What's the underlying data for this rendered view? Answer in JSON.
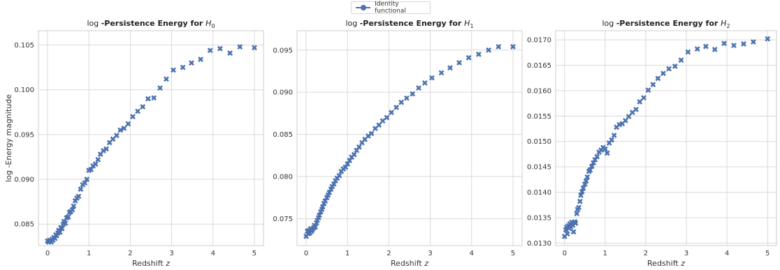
{
  "legend": {
    "label": "Identity functional",
    "color": "#4c72b0"
  },
  "shared": {
    "ylabel": "log -Energy magnitude",
    "xlabel_prefix": "Redshift ",
    "xlabel_var": "z"
  },
  "chart_data": [
    {
      "type": "scatter",
      "title_prefix": "log ",
      "title_bold": "-Persistence Energy for ",
      "title_sym": "H",
      "title_sub": "0",
      "xlim": [
        -0.22,
        5.22
      ],
      "ylim": [
        0.0826,
        0.1066
      ],
      "xticks": [
        0,
        1,
        2,
        3,
        4,
        5
      ],
      "yticks": [
        0.085,
        0.09,
        0.095,
        0.1,
        0.105
      ],
      "ytick_labels": [
        "0.085",
        "0.090",
        "0.095",
        "0.100",
        "0.105"
      ],
      "x": [
        0,
        0.03,
        0.05,
        0.07,
        0.09,
        0.11,
        0.13,
        0.15,
        0.18,
        0.2,
        0.22,
        0.25,
        0.27,
        0.3,
        0.32,
        0.35,
        0.38,
        0.4,
        0.43,
        0.46,
        0.5,
        0.53,
        0.56,
        0.6,
        0.63,
        0.67,
        0.71,
        0.75,
        0.8,
        0.85,
        0.9,
        0.95,
        1.0,
        1.05,
        1.1,
        1.16,
        1.22,
        1.28,
        1.35,
        1.42,
        1.5,
        1.58,
        1.67,
        1.76,
        1.85,
        1.95,
        2.06,
        2.18,
        2.3,
        2.43,
        2.57,
        2.72,
        2.87,
        3.04,
        3.27,
        3.48,
        3.7,
        3.93,
        4.17,
        4.41,
        4.65,
        5.0
      ],
      "y": [
        0.0831,
        0.083,
        0.0832,
        0.0831,
        0.083,
        0.0833,
        0.0832,
        0.0835,
        0.0834,
        0.0838,
        0.0837,
        0.084,
        0.0843,
        0.0841,
        0.0846,
        0.0845,
        0.085,
        0.0853,
        0.0851,
        0.0857,
        0.0858,
        0.0863,
        0.0864,
        0.0866,
        0.087,
        0.0876,
        0.0879,
        0.0881,
        0.0889,
        0.0894,
        0.0896,
        0.09,
        0.091,
        0.0911,
        0.0915,
        0.0917,
        0.0922,
        0.0928,
        0.0932,
        0.0934,
        0.0941,
        0.0945,
        0.0949,
        0.0955,
        0.0957,
        0.0962,
        0.097,
        0.0976,
        0.0981,
        0.099,
        0.0991,
        0.1002,
        0.1012,
        0.1022,
        0.1025,
        0.103,
        0.1034,
        0.1044,
        0.1046,
        0.1041,
        0.1048,
        0.1047
      ]
    },
    {
      "type": "scatter",
      "title_prefix": "log ",
      "title_bold": "-Persistence Energy for ",
      "title_sym": "H",
      "title_sub": "1",
      "xlim": [
        -0.22,
        5.22
      ],
      "ylim": [
        0.0718,
        0.0973
      ],
      "xticks": [
        0,
        1,
        2,
        3,
        4,
        5
      ],
      "yticks": [
        0.075,
        0.08,
        0.085,
        0.09,
        0.095
      ],
      "ytick_labels": [
        "0.075",
        "0.080",
        "0.085",
        "0.090",
        "0.095"
      ],
      "x": [
        0,
        0.03,
        0.05,
        0.07,
        0.09,
        0.11,
        0.13,
        0.15,
        0.18,
        0.2,
        0.22,
        0.25,
        0.27,
        0.3,
        0.32,
        0.35,
        0.38,
        0.4,
        0.43,
        0.46,
        0.5,
        0.53,
        0.56,
        0.6,
        0.63,
        0.67,
        0.71,
        0.75,
        0.8,
        0.85,
        0.9,
        0.95,
        1.0,
        1.05,
        1.1,
        1.16,
        1.22,
        1.28,
        1.35,
        1.42,
        1.5,
        1.58,
        1.67,
        1.76,
        1.85,
        1.95,
        2.06,
        2.18,
        2.3,
        2.43,
        2.57,
        2.72,
        2.87,
        3.04,
        3.27,
        3.48,
        3.7,
        3.93,
        4.17,
        4.41,
        4.65,
        5.0
      ],
      "y": [
        0.0729,
        0.0735,
        0.0732,
        0.0736,
        0.0733,
        0.0738,
        0.0735,
        0.0737,
        0.0739,
        0.0742,
        0.074,
        0.0745,
        0.0748,
        0.0751,
        0.0754,
        0.0758,
        0.0761,
        0.0764,
        0.0768,
        0.0771,
        0.0775,
        0.0778,
        0.0781,
        0.0785,
        0.0788,
        0.0791,
        0.0795,
        0.0798,
        0.0801,
        0.0806,
        0.0809,
        0.0811,
        0.0815,
        0.0819,
        0.0823,
        0.0826,
        0.0831,
        0.0835,
        0.084,
        0.0844,
        0.0848,
        0.0851,
        0.0857,
        0.0861,
        0.0866,
        0.087,
        0.0876,
        0.0882,
        0.0888,
        0.0893,
        0.0898,
        0.0905,
        0.0911,
        0.0917,
        0.0923,
        0.0929,
        0.0935,
        0.0941,
        0.0945,
        0.095,
        0.0954,
        0.0954
      ]
    },
    {
      "type": "scatter",
      "title_prefix": "log ",
      "title_bold": "-Persistence Energy for ",
      "title_sym": "H",
      "title_sub": "2",
      "xlim": [
        -0.22,
        5.22
      ],
      "ylim": [
        0.01295,
        0.01718
      ],
      "xticks": [
        0,
        1,
        2,
        3,
        4,
        5
      ],
      "yticks": [
        0.013,
        0.0135,
        0.014,
        0.0145,
        0.015,
        0.0155,
        0.016,
        0.0165,
        0.017
      ],
      "ytick_labels": [
        "0.0130",
        "0.0135",
        "0.0140",
        "0.0145",
        "0.0150",
        "0.0155",
        "0.0160",
        "0.0165",
        "0.0170"
      ],
      "x": [
        0,
        0.03,
        0.05,
        0.07,
        0.09,
        0.11,
        0.13,
        0.15,
        0.18,
        0.2,
        0.22,
        0.25,
        0.27,
        0.3,
        0.32,
        0.35,
        0.38,
        0.4,
        0.43,
        0.46,
        0.5,
        0.53,
        0.56,
        0.6,
        0.63,
        0.67,
        0.71,
        0.75,
        0.8,
        0.85,
        0.9,
        0.95,
        1.0,
        1.05,
        1.1,
        1.16,
        1.22,
        1.28,
        1.35,
        1.42,
        1.5,
        1.58,
        1.67,
        1.76,
        1.85,
        1.95,
        2.06,
        2.18,
        2.3,
        2.43,
        2.57,
        2.72,
        2.87,
        3.04,
        3.27,
        3.48,
        3.7,
        3.93,
        4.17,
        4.41,
        4.65,
        5.0
      ],
      "y": [
        0.01313,
        0.01326,
        0.01331,
        0.01318,
        0.01334,
        0.01329,
        0.01338,
        0.01332,
        0.01341,
        0.01335,
        0.01322,
        0.01342,
        0.01339,
        0.01358,
        0.01366,
        0.0137,
        0.01382,
        0.01394,
        0.01401,
        0.01408,
        0.01416,
        0.01422,
        0.0143,
        0.01441,
        0.01444,
        0.01451,
        0.01458,
        0.01464,
        0.0147,
        0.01479,
        0.01483,
        0.01488,
        0.01485,
        0.01477,
        0.01497,
        0.01503,
        0.01512,
        0.01528,
        0.01533,
        0.01535,
        0.01541,
        0.01549,
        0.01557,
        0.01563,
        0.01578,
        0.01586,
        0.01601,
        0.01612,
        0.01624,
        0.01634,
        0.01643,
        0.01648,
        0.0166,
        0.01676,
        0.01682,
        0.01687,
        0.01681,
        0.01693,
        0.01689,
        0.01692,
        0.01696,
        0.01702
      ]
    }
  ]
}
